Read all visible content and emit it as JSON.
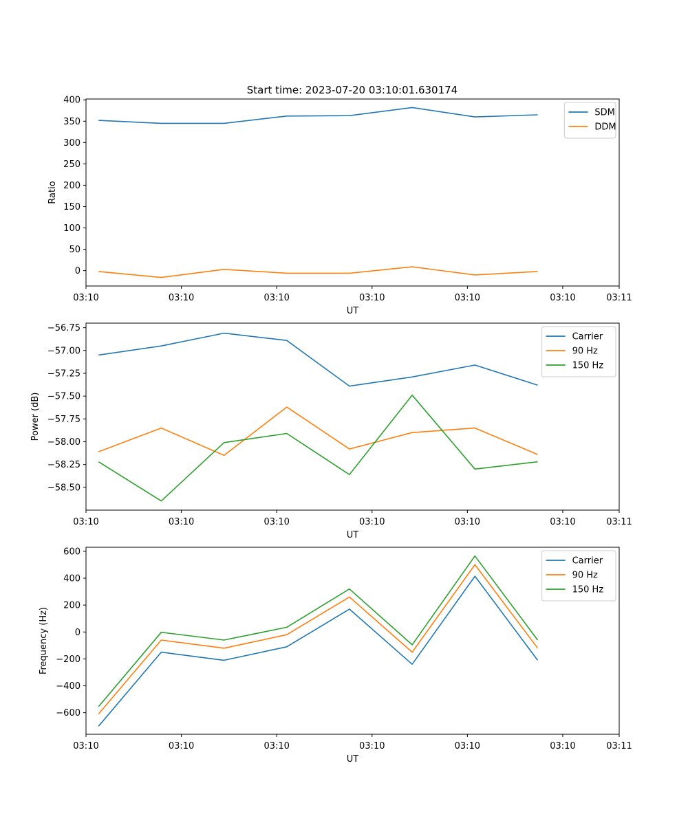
{
  "title": "Start time: 2023-07-20 03:10:01.630174",
  "chart_data": [
    {
      "type": "line",
      "xlabel": "UT",
      "ylabel": "Ratio",
      "x": [
        1,
        2,
        3,
        4,
        5,
        6,
        7,
        8
      ],
      "xlim": [
        0.8,
        9.3
      ],
      "xticks": [
        0.8,
        2.32,
        3.84,
        5.36,
        6.88,
        8.4,
        9.3
      ],
      "xtick_labels": [
        "03:10",
        "03:10",
        "03:10",
        "03:10",
        "03:10",
        "03:10",
        "03:11"
      ],
      "ylim": [
        -36,
        402
      ],
      "yticks": [
        0,
        50,
        100,
        150,
        200,
        250,
        300,
        350,
        400
      ],
      "ytick_labels": [
        "0",
        "50",
        "100",
        "150",
        "200",
        "250",
        "300",
        "350",
        "400"
      ],
      "legend": "top-right",
      "series": [
        {
          "name": "SDM",
          "color": "#1f77b4",
          "values": [
            352,
            345,
            345,
            362,
            363,
            382,
            360,
            365
          ]
        },
        {
          "name": "DDM",
          "color": "#ff7f0e",
          "values": [
            -2,
            -16,
            3,
            -6,
            -6,
            9,
            -10,
            -2
          ]
        }
      ]
    },
    {
      "type": "line",
      "xlabel": "UT",
      "ylabel": "Power (dB)",
      "x": [
        1,
        2,
        3,
        4,
        5,
        6,
        7,
        8
      ],
      "xlim": [
        0.8,
        9.3
      ],
      "xticks": [
        0.8,
        2.32,
        3.84,
        5.36,
        6.88,
        8.4,
        9.3
      ],
      "xtick_labels": [
        "03:10",
        "03:10",
        "03:10",
        "03:10",
        "03:10",
        "03:10",
        "03:11"
      ],
      "ylim": [
        -58.75,
        -56.7
      ],
      "yticks": [
        -58.5,
        -58.25,
        -58.0,
        -57.75,
        -57.5,
        -57.25,
        -57.0,
        -56.75
      ],
      "ytick_labels": [
        "−58.50",
        "−58.25",
        "−58.00",
        "−57.75",
        "−57.50",
        "−57.25",
        "−57.00",
        "−56.75"
      ],
      "legend": "top-right",
      "series": [
        {
          "name": "Carrier",
          "color": "#1f77b4",
          "values": [
            -57.05,
            -56.95,
            -56.81,
            -56.89,
            -57.39,
            -57.29,
            -57.16,
            -57.38
          ]
        },
        {
          "name": "90 Hz",
          "color": "#ff7f0e",
          "values": [
            -58.11,
            -57.85,
            -58.15,
            -57.62,
            -58.08,
            -57.9,
            -57.85,
            -58.14
          ]
        },
        {
          "name": "150 Hz",
          "color": "#2ca02c",
          "values": [
            -58.22,
            -58.65,
            -58.01,
            -57.91,
            -58.36,
            -57.49,
            -58.3,
            -58.22
          ]
        }
      ]
    },
    {
      "type": "line",
      "xlabel": "UT",
      "ylabel": "Frequency (Hz)",
      "x": [
        1,
        2,
        3,
        4,
        5,
        6,
        7,
        8
      ],
      "xlim": [
        0.8,
        9.3
      ],
      "xticks": [
        0.8,
        2.32,
        3.84,
        5.36,
        6.88,
        8.4,
        9.3
      ],
      "xtick_labels": [
        "03:10",
        "03:10",
        "03:10",
        "03:10",
        "03:10",
        "03:10",
        "03:11"
      ],
      "ylim": [
        -760,
        630
      ],
      "yticks": [
        -600,
        -400,
        -200,
        0,
        200,
        400,
        600
      ],
      "ytick_labels": [
        "−600",
        "−400",
        "−200",
        "0",
        "200",
        "400",
        "600"
      ],
      "legend": "top-right",
      "series": [
        {
          "name": "Carrier",
          "color": "#1f77b4",
          "values": [
            -700,
            -150,
            -210,
            -110,
            170,
            -240,
            415,
            -210
          ]
        },
        {
          "name": "90 Hz",
          "color": "#ff7f0e",
          "values": [
            -610,
            -60,
            -120,
            -20,
            260,
            -150,
            500,
            -120
          ]
        },
        {
          "name": "150 Hz",
          "color": "#2ca02c",
          "values": [
            -555,
            -2,
            -60,
            35,
            320,
            -95,
            565,
            -60
          ]
        }
      ]
    }
  ]
}
